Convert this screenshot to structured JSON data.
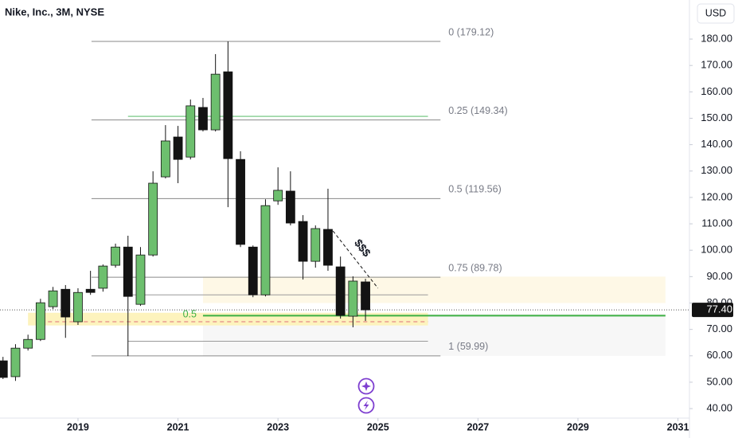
{
  "header": {
    "title": "Nike, Inc., 3M, NYSE",
    "currency": "USD"
  },
  "chart_data": {
    "type": "candlestick",
    "x": [
      2017.5,
      2017.75,
      2018.0,
      2018.25,
      2018.5,
      2018.75,
      2019.0,
      2019.25,
      2019.5,
      2019.75,
      2020.0,
      2020.25,
      2020.5,
      2020.75,
      2021.0,
      2021.25,
      2021.5,
      2021.75,
      2022.0,
      2022.25,
      2022.5,
      2022.75,
      2023.0,
      2023.25,
      2023.5,
      2023.75,
      2024.0,
      2024.25,
      2024.5,
      2024.75
    ],
    "open": [
      58.1,
      52.1,
      62.9,
      66.2,
      78.6,
      85.2,
      72.9,
      85.2,
      85.6,
      94.3,
      101.2,
      79.5,
      98.2,
      127.8,
      142.9,
      135.3,
      154.1,
      145.6,
      167.6,
      134.4,
      101.2,
      83.1,
      118.7,
      122.4,
      110.9,
      95.8,
      107.9,
      93.7,
      75.0,
      88.0
    ],
    "high": [
      59.6,
      64.4,
      68.0,
      81.6,
      86.1,
      86.8,
      85.6,
      92.2,
      94.6,
      102.5,
      105.5,
      101.2,
      129.9,
      147.4,
      147.1,
      157.1,
      157.7,
      174.3,
      179.1,
      137.5,
      101.8,
      119.3,
      131.4,
      129.9,
      113.3,
      109.4,
      123.3,
      97.6,
      90.1,
      89.2
    ],
    "low": [
      51.2,
      50.5,
      62.0,
      65.6,
      77.7,
      66.8,
      71.7,
      83.1,
      84.3,
      93.4,
      59.9,
      78.9,
      97.6,
      127.2,
      125.4,
      134.4,
      145.0,
      145.0,
      116.3,
      101.2,
      82.2,
      82.5,
      117.2,
      109.4,
      88.9,
      93.4,
      92.2,
      74.1,
      70.8,
      73.2
    ],
    "close": [
      51.8,
      62.9,
      66.2,
      80.1,
      84.6,
      74.7,
      84.0,
      84.0,
      94.0,
      101.2,
      82.5,
      98.2,
      125.4,
      141.4,
      134.4,
      154.7,
      145.6,
      166.7,
      134.7,
      102.2,
      83.1,
      116.9,
      122.7,
      110.3,
      95.8,
      108.2,
      94.3,
      75.3,
      88.3,
      77.4
    ],
    "up_color": "#6dbf6e",
    "down_color": "#131313",
    "xlim": [
      2017.44,
      2031.23
    ],
    "xticks": [
      2019,
      2021,
      2023,
      2025,
      2027,
      2029,
      2031
    ],
    "ylim": [
      36.4,
      194.8
    ],
    "yticks": [
      {
        "value": 40,
        "label": "40.00"
      },
      {
        "value": 50,
        "label": "50.00"
      },
      {
        "value": 60,
        "label": "60.00"
      },
      {
        "value": 70,
        "label": "70.00"
      },
      {
        "value": 80,
        "label": "80.00"
      },
      {
        "value": 90,
        "label": "90.00"
      },
      {
        "value": 100,
        "label": "100.00"
      },
      {
        "value": 110,
        "label": "110.00"
      },
      {
        "value": 120,
        "label": "120.00"
      },
      {
        "value": 130,
        "label": "130.00"
      },
      {
        "value": 140,
        "label": "140.00"
      },
      {
        "value": 150,
        "label": "150.00"
      },
      {
        "value": 160,
        "label": "160.00"
      },
      {
        "value": 170,
        "label": "170.00"
      },
      {
        "value": 180,
        "label": "180.00"
      }
    ],
    "last_price": {
      "value": 77.4,
      "label": "77.40"
    },
    "fib_levels": [
      {
        "label": "0 (179.12)",
        "value": 179.12
      },
      {
        "label": "0.25 (149.34)",
        "value": 149.34
      },
      {
        "label": "0.5 (119.56)",
        "value": 119.56
      },
      {
        "label": "0.75 (89.78)",
        "value": 89.78
      },
      {
        "label": "1 (59.99)",
        "value": 59.99
      }
    ],
    "fib_x": [
      2019.27,
      2026.25
    ],
    "lines": [
      {
        "value": 150.7,
        "x": [
          2020.0,
          2026.0
        ],
        "color": "#8fd39a"
      },
      {
        "value": 83.1,
        "x": [
          2020.0,
          2026.0
        ],
        "color": "#9a9a9a"
      },
      {
        "value": 65.5,
        "x": [
          2020.0,
          2026.0
        ],
        "color": "#9a9a9a"
      }
    ],
    "support": {
      "label": "0.5",
      "value": 75.2,
      "x": [
        2021.5,
        2030.75
      ],
      "color": "#3cb043"
    },
    "zones": [
      {
        "range": [
          60,
          76
        ],
        "x": [
          2021.5,
          2030.75
        ],
        "color": "#f7f7f7"
      },
      {
        "range": [
          80,
          90
        ],
        "x": [
          2021.5,
          2030.75
        ],
        "color": "#fef8e6"
      },
      {
        "range": [
          71.5,
          76.3
        ],
        "x": [
          2018.0,
          2026.0
        ],
        "color": "#fdf3bd"
      }
    ],
    "dashed_line": {
      "value": 72.9,
      "x": [
        2018.4,
        2026.0
      ],
      "color": "#e0707a"
    },
    "trend": {
      "label": "$$$",
      "x": [
        2024.1,
        2025.0
      ],
      "y": [
        107.3,
        85.6
      ]
    }
  }
}
